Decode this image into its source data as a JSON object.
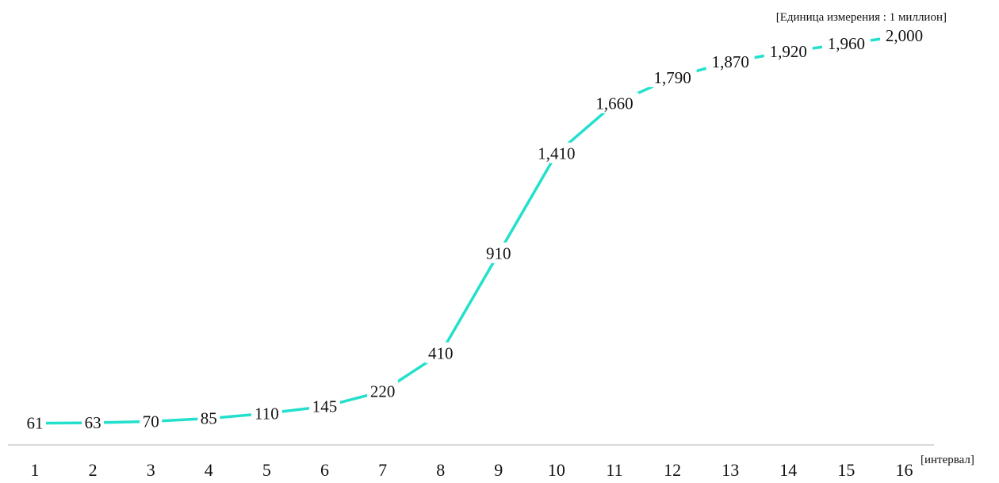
{
  "chart_data": {
    "type": "line",
    "units_note": "[Единица измерения : 1 миллион]",
    "x_unit_label": "[интервал]",
    "categories": [
      "1",
      "2",
      "3",
      "4",
      "5",
      "6",
      "7",
      "8",
      "9",
      "10",
      "11",
      "12",
      "13",
      "14",
      "15",
      "16"
    ],
    "series": [
      {
        "values": [
          61,
          63,
          70,
          85,
          110,
          145,
          220,
          410,
          910,
          1410,
          1660,
          1790,
          1870,
          1920,
          1960,
          2000
        ],
        "labels": [
          "61",
          "63",
          "70",
          "85",
          "110",
          "145",
          "220",
          "410",
          "910",
          "1,410",
          "1,660",
          "1,790",
          "1,870",
          "1,920",
          "1,960",
          "2,000"
        ],
        "color": "#22e0cc"
      }
    ],
    "ylim": [
      0,
      2000
    ],
    "grid": false,
    "axis_color": "#cccccc"
  }
}
